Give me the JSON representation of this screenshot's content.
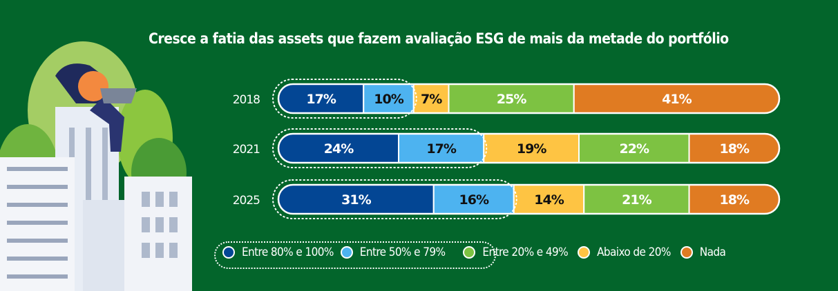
{
  "title": "Cresce a fatia das assets que fazem avaliação ESG de mais da metade do portfólio",
  "chart_data": {
    "type": "bar",
    "orientation": "horizontal",
    "stacked": true,
    "title": "Cresce a fatia das assets que fazem avaliação ESG de mais da metade do portfólio",
    "categories": [
      "2018",
      "2021",
      "2025"
    ],
    "series": [
      {
        "name": "Entre 80% e 100%",
        "color": "#034694",
        "values": [
          17,
          24,
          31
        ]
      },
      {
        "name": "Entre 50% e 79%",
        "color": "#4db3f0",
        "values": [
          10,
          17,
          16
        ]
      },
      {
        "name": "Abaixo de 20%",
        "color": "#fec443",
        "values": [
          7,
          19,
          14
        ]
      },
      {
        "name": "Entre 20% e 49%",
        "color": "#7dc242",
        "values": [
          25,
          22,
          21
        ]
      },
      {
        "name": "Nada",
        "color": "#e07b22",
        "values": [
          41,
          18,
          18
        ]
      }
    ],
    "legend_order": [
      "Entre 80% e 100%",
      "Entre 50% e 79%",
      "Entre 20% e 49%",
      "Abaixo de 20%",
      "Nada"
    ],
    "legend_placement": "bottom",
    "grid": false,
    "xlim": [
      0,
      100
    ],
    "highlight": "Entre 80% e 100% + Entre 50% e 79% (dotted outline)"
  },
  "colors": {
    "background": "#03652b"
  }
}
